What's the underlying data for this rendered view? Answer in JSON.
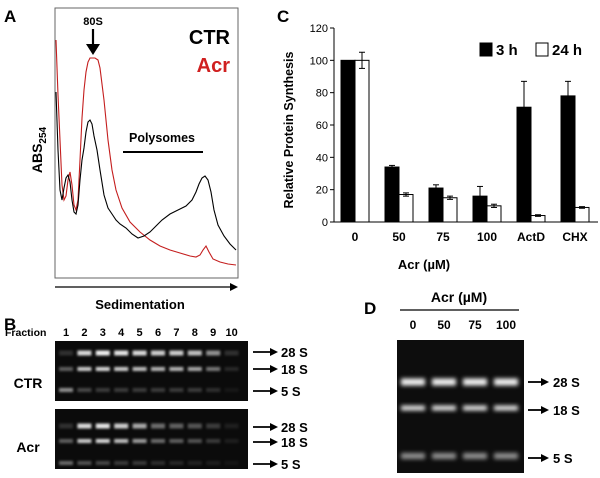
{
  "panels": {
    "a": {
      "letter": "A",
      "ylabel_main": "ABS",
      "ylabel_sub": "254",
      "xlabel": "Sedimentation",
      "peak_label": "80S",
      "region_label": "Polysomes",
      "legend": [
        {
          "name": "CTR",
          "color": "#000000"
        },
        {
          "name": "Acr",
          "color": "#d02020"
        }
      ]
    },
    "b": {
      "letter": "B",
      "fraction_title": "Fraction",
      "fractions": [
        "1",
        "2",
        "3",
        "4",
        "5",
        "6",
        "7",
        "8",
        "9",
        "10"
      ],
      "gels": [
        {
          "label": "CTR",
          "bands": [
            "28 S",
            "18 S",
            "5 S"
          ]
        },
        {
          "label": "Acr",
          "bands": [
            "28 S",
            "18 S",
            "5 S"
          ]
        }
      ]
    },
    "c": {
      "letter": "C"
    },
    "d": {
      "letter": "D",
      "title": "Acr (µM)",
      "lanes": [
        "0",
        "50",
        "75",
        "100"
      ],
      "bands": [
        "28 S",
        "18 S",
        "5 S"
      ]
    }
  },
  "chart_data": {
    "type": "bar",
    "title": "",
    "xlabel": "Acr (µM)",
    "ylabel": "Relative Protein Synthesis",
    "ylim": [
      0,
      120
    ],
    "yticks": [
      0,
      20,
      40,
      60,
      80,
      100,
      120
    ],
    "categories": [
      "0",
      "50",
      "75",
      "100",
      "ActD",
      "CHX"
    ],
    "series": [
      {
        "name": "3 h",
        "color": "#000000",
        "values": [
          100,
          34,
          21,
          16,
          71,
          78
        ],
        "errors": [
          0,
          1,
          2,
          6,
          16,
          9
        ]
      },
      {
        "name": "24 h",
        "color": "#ffffff",
        "values": [
          100,
          17,
          15,
          10,
          4,
          9
        ],
        "errors": [
          5,
          1,
          1,
          1,
          0.5,
          0.5
        ]
      }
    ],
    "legend_position": "top-right"
  }
}
